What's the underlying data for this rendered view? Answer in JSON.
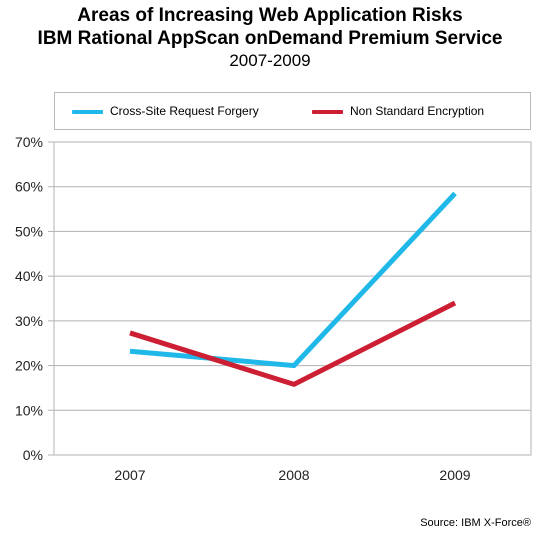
{
  "header": {
    "title_line1": "Areas of Increasing Web Application Risks",
    "title_line2": "IBM Rational AppScan onDemand Premium Service",
    "title_line3": "2007-2009"
  },
  "legend": {
    "placement": "top",
    "items": [
      {
        "label": "Cross-Site Request Forgery",
        "color": "#1fb8e8"
      },
      {
        "label": "Non Standard Encryption",
        "color": "#cc1f33"
      }
    ]
  },
  "source": "Source: IBM X-Force®",
  "chart_data": {
    "type": "line",
    "title": "Areas of Increasing Web Application Risks",
    "subtitle": "IBM Rational AppScan onDemand Premium Service 2007-2009",
    "x": [
      "2007",
      "2008",
      "2009"
    ],
    "ylim": [
      0,
      70
    ],
    "yticks": [
      "0%",
      "10%",
      "20%",
      "30%",
      "40%",
      "50%",
      "60%",
      "70%"
    ],
    "grid": true,
    "series": [
      {
        "name": "Cross-Site Request Forgery",
        "values": [
          23.2,
          20.0,
          58.5
        ],
        "color": "#1fb8e8"
      },
      {
        "name": "Non Standard Encryption",
        "values": [
          27.3,
          15.8,
          34.0
        ],
        "color": "#cc1f33"
      }
    ]
  }
}
